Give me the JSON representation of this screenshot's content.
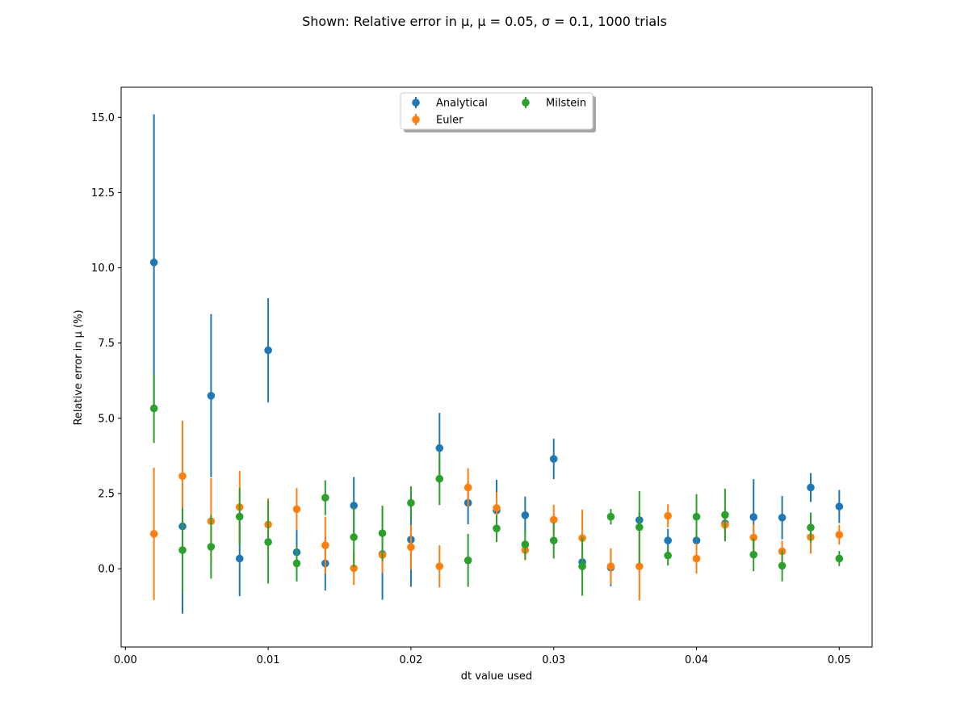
{
  "chart_data": {
    "type": "scatter",
    "title": "Shown: Relative error in μ, μ = 0.05, σ = 0.1, 1000 trials",
    "xlabel": "dt value used",
    "ylabel": "Relative error in μ (%)",
    "xlim": [
      -0.0003,
      0.0523
    ],
    "ylim": [
      -2.6,
      16.0
    ],
    "xticks": [
      0.0,
      0.01,
      0.02,
      0.03,
      0.04,
      0.05
    ],
    "xtick_labels": [
      "0.00",
      "0.01",
      "0.02",
      "0.03",
      "0.04",
      "0.05"
    ],
    "yticks": [
      0.0,
      2.5,
      5.0,
      7.5,
      10.0,
      12.5,
      15.0
    ],
    "ytick_labels": [
      "0.0",
      "2.5",
      "5.0",
      "7.5",
      "10.0",
      "12.5",
      "15.0"
    ],
    "grid": false,
    "legend": {
      "placement": "upper-center",
      "columns": 2,
      "shadow": true
    },
    "x": [
      0.002,
      0.004,
      0.006,
      0.008,
      0.01,
      0.012,
      0.014,
      0.016,
      0.018,
      0.02,
      0.022,
      0.024,
      0.026,
      0.028,
      0.03,
      0.032,
      0.034,
      0.036,
      0.038,
      0.04,
      0.042,
      0.044,
      0.046,
      0.048,
      0.05
    ],
    "series": [
      {
        "name": "Analytical",
        "color": "#1f77b4",
        "values": [
          10.18,
          1.41,
          5.75,
          0.34,
          7.26,
          0.55,
          0.18,
          2.1,
          0.49,
          0.97,
          4.01,
          2.19,
          1.94,
          1.78,
          3.65,
          0.22,
          0.04,
          1.62,
          0.94,
          0.94,
          1.51,
          1.72,
          1.7,
          2.7,
          2.07
        ],
        "errors": [
          4.92,
          2.9,
          2.71,
          1.25,
          1.73,
          0.75,
          0.9,
          0.95,
          1.52,
          1.57,
          1.17,
          0.71,
          1.02,
          0.62,
          0.67,
          0.4,
          0.62,
          0.26,
          0.39,
          0.34,
          0.3,
          1.26,
          0.72,
          0.48,
          0.55
        ]
      },
      {
        "name": "Euler",
        "color": "#ff7f0e",
        "values": [
          1.16,
          3.08,
          1.58,
          2.05,
          1.47,
          1.98,
          0.78,
          0.02,
          0.46,
          0.72,
          0.08,
          2.7,
          2.02,
          0.62,
          1.63,
          1.02,
          0.08,
          0.08,
          1.76,
          0.34,
          1.46,
          1.04,
          0.58,
          1.05,
          1.13
        ],
        "errors": [
          2.2,
          1.84,
          1.43,
          1.2,
          0.87,
          0.7,
          0.95,
          0.56,
          0.6,
          0.74,
          0.7,
          0.64,
          0.53,
          0.34,
          0.5,
          0.95,
          0.6,
          1.13,
          0.38,
          0.5,
          0.55,
          0.44,
          0.35,
          0.55,
          0.33
        ]
      },
      {
        "name": "Milstein",
        "color": "#2ca02c",
        "values": [
          5.33,
          0.62,
          0.73,
          1.73,
          0.89,
          0.18,
          2.36,
          1.05,
          1.18,
          2.19,
          2.99,
          0.28,
          1.34,
          0.81,
          0.94,
          0.08,
          1.73,
          1.38,
          0.44,
          1.73,
          1.79,
          0.47,
          0.1,
          1.37,
          0.34
        ],
        "errors": [
          1.15,
          1.4,
          1.06,
          0.95,
          1.38,
          0.6,
          0.58,
          1.01,
          0.92,
          0.55,
          0.87,
          0.88,
          0.45,
          0.5,
          0.6,
          0.98,
          0.26,
          1.2,
          0.33,
          0.75,
          0.87,
          0.55,
          0.52,
          0.5,
          0.25
        ]
      }
    ]
  }
}
